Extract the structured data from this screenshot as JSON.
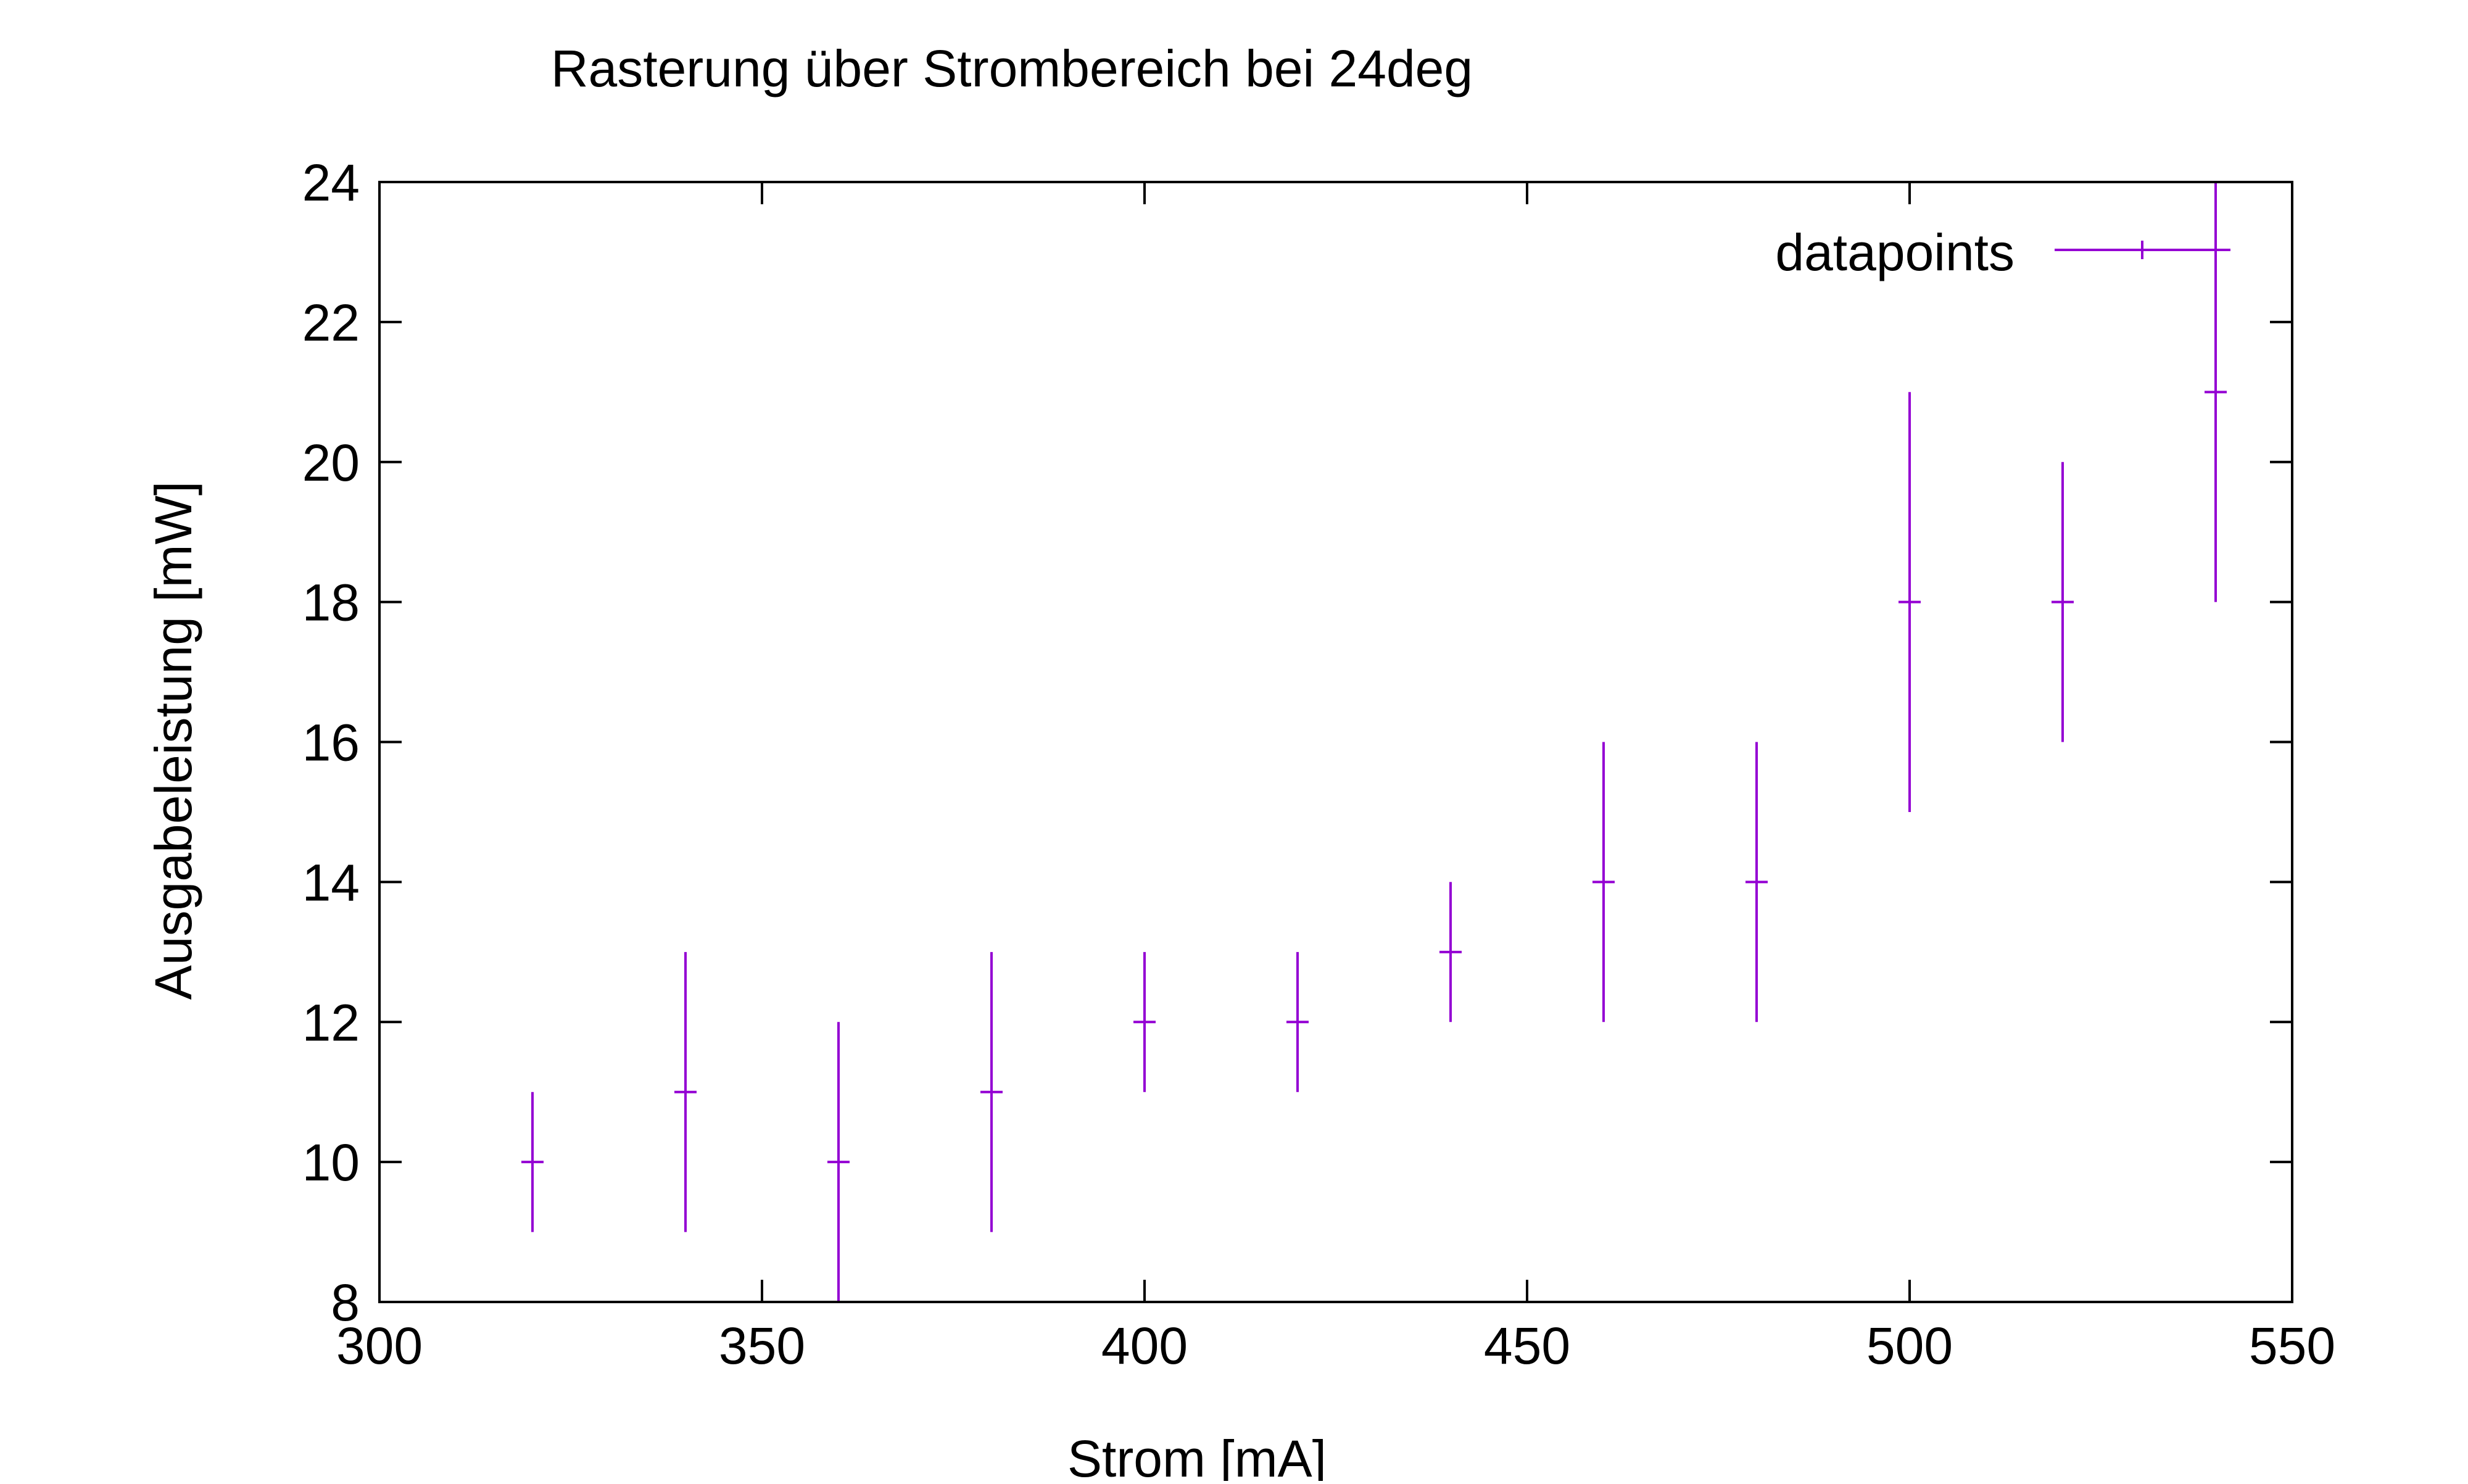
{
  "chart_data": {
    "type": "scatter",
    "title": "Rasterung über Strombereich bei 24deg",
    "xlabel": "Strom [mA]",
    "ylabel": "Ausgabeleistung [mW]",
    "xlim": [
      300,
      550
    ],
    "ylim": [
      8,
      24
    ],
    "xticks": [
      300,
      350,
      400,
      450,
      500,
      550
    ],
    "yticks": [
      8,
      10,
      12,
      14,
      16,
      18,
      20,
      22,
      24
    ],
    "xtick_labels": [
      "300",
      "350",
      "400",
      "450",
      "500",
      "550"
    ],
    "ytick_labels": [
      "8",
      "10",
      "12",
      "14",
      "16",
      "18",
      "20",
      "22",
      "24"
    ],
    "grid": false,
    "legend_position": "top-right",
    "series": [
      {
        "name": "datapoints",
        "color": "#9400d3",
        "marker": "plus",
        "error_bars": "y",
        "points": [
          {
            "x": 320,
            "y": 10,
            "ylow": 9,
            "yhigh": 11
          },
          {
            "x": 340,
            "y": 11,
            "ylow": 9,
            "yhigh": 13
          },
          {
            "x": 360,
            "y": 10,
            "ylow": 8,
            "yhigh": 12
          },
          {
            "x": 380,
            "y": 11,
            "ylow": 9,
            "yhigh": 13
          },
          {
            "x": 400,
            "y": 12,
            "ylow": 11,
            "yhigh": 13
          },
          {
            "x": 420,
            "y": 12,
            "ylow": 11,
            "yhigh": 13
          },
          {
            "x": 440,
            "y": 13,
            "ylow": 12,
            "yhigh": 14
          },
          {
            "x": 460,
            "y": 14,
            "ylow": 12,
            "yhigh": 16
          },
          {
            "x": 480,
            "y": 14,
            "ylow": 12,
            "yhigh": 16
          },
          {
            "x": 500,
            "y": 18,
            "ylow": 15,
            "yhigh": 21
          },
          {
            "x": 520,
            "y": 18,
            "ylow": 16,
            "yhigh": 20
          },
          {
            "x": 540,
            "y": 21,
            "ylow": 18,
            "yhigh": 24
          }
        ]
      }
    ]
  }
}
